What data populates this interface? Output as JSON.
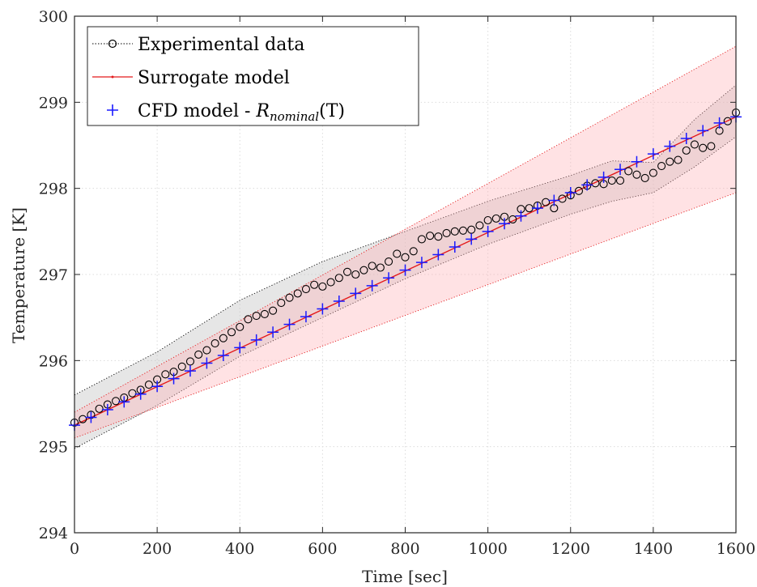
{
  "chart_data": {
    "type": "line",
    "title": "",
    "xlabel": "Time [sec]",
    "ylabel": "Temperature [K]",
    "xlim": [
      0,
      1600
    ],
    "ylim": [
      294,
      300
    ],
    "xticks": [
      0,
      200,
      400,
      600,
      800,
      1000,
      1200,
      1400,
      1600
    ],
    "yticks": [
      294,
      295,
      296,
      297,
      298,
      299,
      300
    ],
    "xtick_labels": [
      "0",
      "200",
      "400",
      "600",
      "800",
      "1000",
      "1200",
      "1400",
      "1600"
    ],
    "ytick_labels": [
      "294",
      "295",
      "296",
      "297",
      "298",
      "299",
      "300"
    ],
    "grid": true,
    "legend_position": "top-left",
    "legend": {
      "experimental": "Experimental data",
      "surrogate": "Surrogate model",
      "cfd_prefix": "CFD model - ",
      "cfd_symbol": "R",
      "cfd_subscript": "nominal",
      "cfd_suffix": "(T)"
    },
    "colors": {
      "experimental": "#000000",
      "surrogate": "#e31a1c",
      "cfd": "#1a1aff",
      "grey_band": "#bdbdbd",
      "red_band": "#ffb3b8"
    },
    "series": [
      {
        "name": "Experimental data",
        "marker": "circle",
        "x": [
          0,
          20,
          40,
          60,
          80,
          100,
          120,
          140,
          160,
          180,
          200,
          220,
          240,
          260,
          280,
          300,
          320,
          340,
          360,
          380,
          400,
          420,
          440,
          460,
          480,
          500,
          520,
          540,
          560,
          580,
          600,
          620,
          640,
          660,
          680,
          700,
          720,
          740,
          760,
          780,
          800,
          820,
          840,
          860,
          880,
          900,
          920,
          940,
          960,
          980,
          1000,
          1020,
          1040,
          1060,
          1080,
          1100,
          1120,
          1140,
          1160,
          1180,
          1200,
          1220,
          1240,
          1260,
          1280,
          1300,
          1320,
          1340,
          1360,
          1380,
          1400,
          1420,
          1440,
          1460,
          1480,
          1500,
          1520,
          1540,
          1560,
          1580,
          1600
        ],
        "y": [
          295.28,
          295.32,
          295.37,
          295.44,
          295.49,
          295.53,
          295.57,
          295.62,
          295.66,
          295.72,
          295.78,
          295.84,
          295.87,
          295.93,
          295.99,
          296.07,
          296.12,
          296.2,
          296.26,
          296.33,
          296.39,
          296.48,
          296.52,
          296.54,
          296.58,
          296.67,
          296.73,
          296.78,
          296.83,
          296.88,
          296.86,
          296.91,
          296.96,
          297.03,
          297.0,
          297.05,
          297.1,
          297.08,
          297.15,
          297.24,
          297.2,
          297.27,
          297.41,
          297.45,
          297.44,
          297.48,
          297.5,
          297.51,
          297.52,
          297.57,
          297.63,
          297.65,
          297.67,
          297.64,
          297.76,
          297.77,
          297.8,
          297.84,
          297.77,
          297.88,
          297.92,
          297.97,
          298.03,
          298.06,
          298.05,
          298.09,
          298.09,
          298.2,
          298.16,
          298.12,
          298.18,
          298.26,
          298.31,
          298.33,
          298.44,
          298.51,
          298.47,
          298.49,
          298.67,
          298.78,
          298.88
        ]
      },
      {
        "name": "Surrogate model",
        "x": [
          0,
          1600
        ],
        "y": [
          295.25,
          298.83
        ]
      },
      {
        "name": "CFD model - R_nominal(T)",
        "marker": "plus",
        "x": [
          0,
          40,
          80,
          120,
          160,
          200,
          240,
          280,
          320,
          360,
          400,
          440,
          480,
          520,
          560,
          600,
          640,
          680,
          720,
          760,
          800,
          840,
          880,
          920,
          960,
          1000,
          1040,
          1080,
          1120,
          1160,
          1200,
          1240,
          1280,
          1320,
          1360,
          1400,
          1440,
          1480,
          1520,
          1560,
          1600
        ],
        "y": [
          295.25,
          295.34,
          295.43,
          295.52,
          295.61,
          295.7,
          295.79,
          295.88,
          295.97,
          296.06,
          296.15,
          296.24,
          296.33,
          296.42,
          296.51,
          296.6,
          296.69,
          296.78,
          296.87,
          296.96,
          297.05,
          297.14,
          297.23,
          297.32,
          297.41,
          297.5,
          297.59,
          297.68,
          297.77,
          297.86,
          297.95,
          298.04,
          298.13,
          298.22,
          298.31,
          298.4,
          298.49,
          298.58,
          298.67,
          298.76,
          298.83
        ]
      },
      {
        "name": "",
        "type": "band",
        "band": "grey",
        "x": [
          0,
          200,
          400,
          600,
          800,
          1000,
          1200,
          1300,
          1400,
          1500,
          1600
        ],
        "upper": [
          295.6,
          296.1,
          296.7,
          297.15,
          297.5,
          297.85,
          298.15,
          298.32,
          298.3,
          298.8,
          299.2
        ],
        "lower": [
          294.98,
          295.48,
          296.05,
          296.5,
          296.95,
          297.35,
          297.7,
          297.85,
          297.95,
          298.25,
          298.6
        ]
      },
      {
        "name": "",
        "type": "band",
        "band": "red",
        "x": [
          0,
          1600
        ],
        "upper": [
          295.4,
          299.65
        ],
        "lower": [
          295.1,
          297.95
        ]
      }
    ]
  }
}
